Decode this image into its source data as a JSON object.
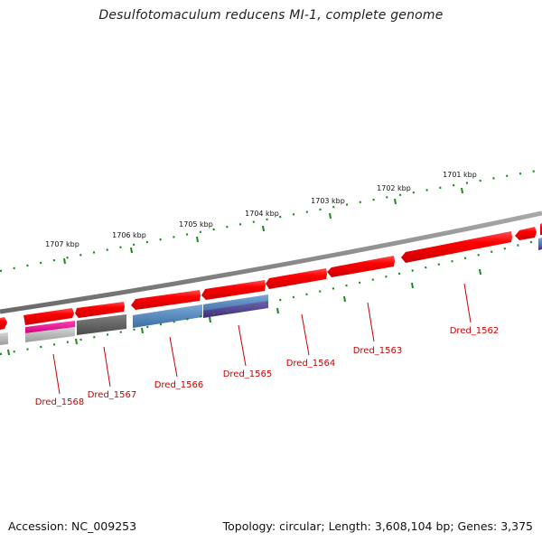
{
  "title": "Desulfotomaculum reducens MI-1, complete genome",
  "footer": {
    "accession": "Accession: NC_009253",
    "summary": "Topology: circular; Length: 3,608,104 bp; Genes: 3,375"
  },
  "ruler": {
    "ticks": [
      "1701 kbp",
      "1702 kbp",
      "1703 kbp",
      "1704 kbp",
      "1705 kbp",
      "1706 kbp",
      "1707 kbp"
    ]
  },
  "genes": {
    "labels": [
      "Dred_1562",
      "Dred_1563",
      "Dred_1564",
      "Dred_1565",
      "Dred_1566",
      "Dred_1567",
      "Dred_1568"
    ]
  },
  "colors": {
    "forward_gene": "#e30000",
    "backbone": "#888888",
    "tick": "#1a8a1a",
    "label": "#cc0000",
    "blue_track": "#4a7fb5",
    "purple_track": "#4b3a8c",
    "gray_track": "#5a5a5a",
    "magenta_track": "#e0008c"
  }
}
